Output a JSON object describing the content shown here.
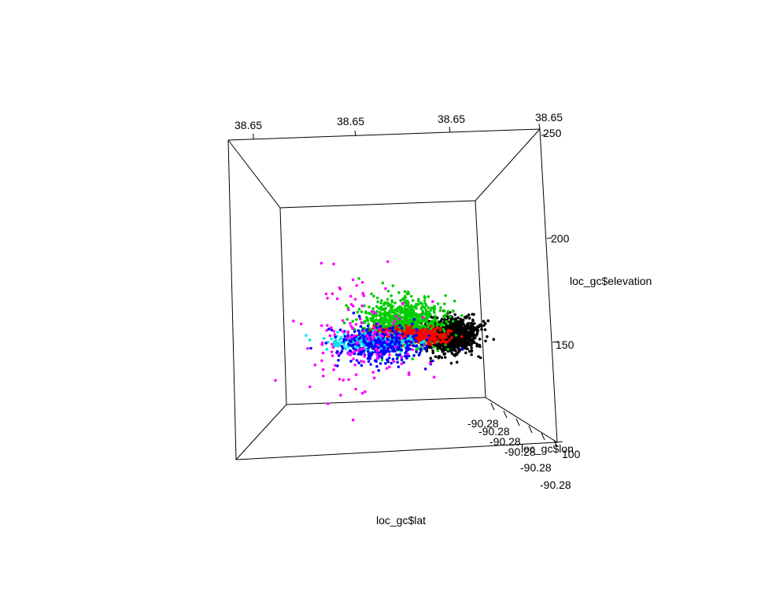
{
  "chart_data": {
    "type": "scatter",
    "projection": "3d-perspective",
    "xlabel": "loc_gc$lat",
    "ylabel": "loc_gc$lon",
    "zlabel": "loc_gc$elevation",
    "x_ticks": [
      "38.65",
      "38.65",
      "38.65",
      "38.65"
    ],
    "y_ticks": [
      "-90.28",
      "-90.28",
      "-90.28",
      "-90.28",
      "-90.28",
      "-90.28"
    ],
    "z_ticks": [
      "100",
      "150",
      "200",
      "250"
    ],
    "zlim": [
      100,
      250
    ],
    "grid": false,
    "series": [
      {
        "color": "#000000",
        "lat": 0.86,
        "lon": 0.5,
        "elevation": 155,
        "spread": [
          0.07,
          0.03,
          6
        ],
        "count": 1300
      },
      {
        "color": "#00cc00",
        "lat": 0.62,
        "lon": 0.5,
        "elevation": 165,
        "spread": [
          0.1,
          0.04,
          9
        ],
        "count": 850
      },
      {
        "color": "#ff0000",
        "lat": 0.66,
        "lon": 0.48,
        "elevation": 154,
        "spread": [
          0.09,
          0.02,
          3
        ],
        "count": 550
      },
      {
        "color": "#00e5ee",
        "lat": 0.46,
        "lon": 0.5,
        "elevation": 150,
        "spread": [
          0.1,
          0.03,
          3
        ],
        "count": 350
      },
      {
        "color": "#0000ff",
        "lat": 0.5,
        "lon": 0.48,
        "elevation": 147,
        "spread": [
          0.12,
          0.04,
          7
        ],
        "count": 320
      },
      {
        "color": "#ff00ff",
        "lat": 0.4,
        "lon": 0.5,
        "elevation": 155,
        "spread": [
          0.15,
          0.05,
          22
        ],
        "count": 140
      }
    ]
  }
}
